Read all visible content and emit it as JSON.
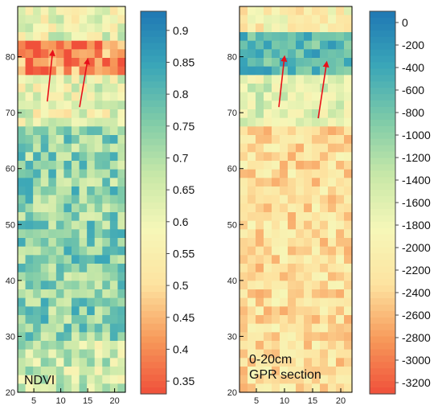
{
  "chart_data": [
    {
      "type": "heatmap",
      "panel_label": "NDVI",
      "x_ticks": [
        "5",
        "10",
        "15",
        "20"
      ],
      "y_ticks": [
        "20",
        "30",
        "40",
        "50",
        "60",
        "70",
        "80"
      ],
      "xlim": [
        2,
        22
      ],
      "ylim": [
        20,
        89
      ],
      "colorbar": {
        "ticks": [
          "0.35",
          "0.4",
          "0.45",
          "0.5",
          "0.55",
          "0.6",
          "0.65",
          "0.7",
          "0.75",
          "0.8",
          "0.85",
          "0.9"
        ],
        "range": [
          0.33,
          0.93
        ]
      },
      "arrows": [
        {
          "from": [
            7.5,
            72
          ],
          "to": [
            8.5,
            81
          ]
        },
        {
          "from": [
            13.5,
            71
          ],
          "to": [
            15,
            79.5
          ]
        }
      ]
    },
    {
      "type": "heatmap",
      "panel_label_lines": [
        "0-20cm",
        "GPR section"
      ],
      "x_ticks": [
        "5",
        "10",
        "15",
        "20"
      ],
      "y_ticks": [
        "20",
        "30",
        "40",
        "50",
        "60",
        "70",
        "80"
      ],
      "xlim": [
        2,
        22
      ],
      "ylim": [
        20,
        89
      ],
      "colorbar": {
        "ticks": [
          "0",
          "-200",
          "-400",
          "-600",
          "-800",
          "-1000",
          "-1200",
          "-1400",
          "-1600",
          "-1800",
          "-2000",
          "-2200",
          "-2400",
          "-2600",
          "-2800",
          "-3000",
          "-3200"
        ],
        "range": [
          -3300,
          100
        ]
      },
      "arrows": [
        {
          "from": [
            9,
            71
          ],
          "to": [
            10,
            80
          ]
        },
        {
          "from": [
            16,
            69
          ],
          "to": [
            17.5,
            79
          ]
        }
      ]
    }
  ],
  "colors": {
    "arrow": "#e8101a",
    "scale": [
      "#f0503a",
      "#f79a5a",
      "#fde3a0",
      "#f6f7b8",
      "#c8e8a8",
      "#7ecba8",
      "#3aa6b8",
      "#1f78b4"
    ]
  }
}
